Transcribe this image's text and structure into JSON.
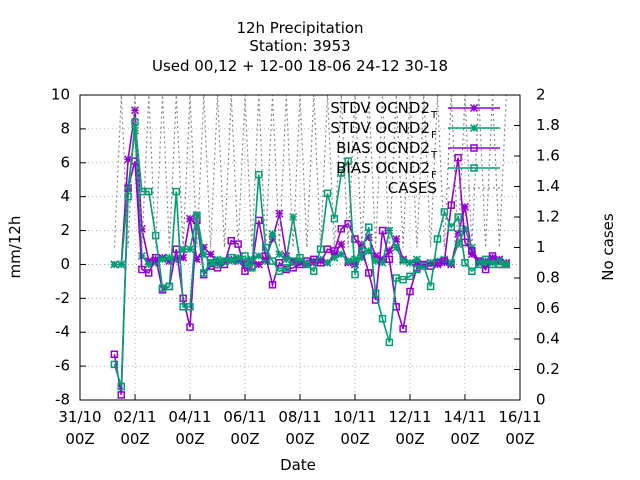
{
  "chart_data": {
    "type": "line",
    "title": [
      "12h Precipitation",
      "Station:     3953",
      "Used  00,12  + 12-00 18-06 24-12 30-18"
    ],
    "xlabel": "Date",
    "ylabel": "mm/12h",
    "y2label": "No cases",
    "ylim": [
      -8,
      10
    ],
    "yticks": [
      -8,
      -6,
      -4,
      -2,
      0,
      2,
      4,
      6,
      8,
      10
    ],
    "y2lim": [
      0,
      2
    ],
    "y2ticks": [
      "0",
      "0.2",
      "0.4",
      "0.6",
      "0.8",
      "1",
      "1.2",
      "1.4",
      "1.6",
      "1.8",
      "2"
    ],
    "xlim_days": [
      0,
      16
    ],
    "xticks": [
      {
        "day": 0,
        "label1": "31/10",
        "label2": "00Z"
      },
      {
        "day": 2,
        "label1": "02/11",
        "label2": "00Z"
      },
      {
        "day": 4,
        "label1": "04/11",
        "label2": "00Z"
      },
      {
        "day": 6,
        "label1": "06/11",
        "label2": "00Z"
      },
      {
        "day": 8,
        "label1": "08/11",
        "label2": "00Z"
      },
      {
        "day": 10,
        "label1": "10/11",
        "label2": "00Z"
      },
      {
        "day": 12,
        "label1": "12/11",
        "label2": "00Z"
      },
      {
        "day": 14,
        "label1": "14/11",
        "label2": "00Z"
      },
      {
        "day": 16,
        "label1": "16/11",
        "label2": "00Z"
      }
    ],
    "grid": true,
    "legend_position": "top-right",
    "series": [
      {
        "name": "STDV OCND2",
        "subscript": "T",
        "color": "#9400d3",
        "marker": "star",
        "axis": "y",
        "x": [
          1.25,
          1.5,
          1.75,
          2.0,
          2.25,
          2.5,
          2.75,
          3.0,
          3.25,
          3.5,
          3.75,
          4.0,
          4.25,
          4.5,
          4.75,
          5.0,
          5.25,
          5.5,
          5.75,
          6.0,
          6.25,
          6.5,
          6.75,
          7.0,
          7.25,
          7.5,
          7.75,
          8.0,
          8.25,
          8.5,
          8.75,
          9.0,
          9.25,
          9.5,
          9.75,
          10.0,
          10.25,
          10.5,
          10.75,
          11.0,
          11.25,
          11.5,
          11.75,
          12.0,
          12.25,
          12.5,
          12.75,
          13.0,
          13.25,
          13.5,
          13.75,
          14.0,
          14.25,
          14.5,
          14.75,
          15.0,
          15.25,
          15.5
        ],
        "y": [
          0.0,
          0.0,
          6.2,
          9.1,
          2.1,
          0.2,
          0.3,
          0.4,
          0.2,
          0.3,
          0.4,
          2.7,
          0.3,
          1.0,
          0.6,
          0.1,
          0.2,
          0.3,
          0.2,
          0.1,
          0.2,
          0.0,
          0.3,
          1.5,
          3.0,
          0.5,
          0.2,
          0.1,
          0.0,
          0.1,
          0.2,
          0.1,
          0.6,
          1.2,
          0.1,
          0.0,
          1.2,
          1.6,
          0.5,
          0.3,
          0.8,
          1.5,
          0.3,
          0.1,
          0.1,
          0.0,
          0.1,
          0.0,
          0.1,
          0.0,
          1.8,
          3.4,
          0.6,
          0.1,
          0.2,
          0.4,
          0.3,
          0.1
        ]
      },
      {
        "name": "STDV OCND2",
        "subscript": "F",
        "color": "#009e73",
        "marker": "star",
        "axis": "y",
        "x": [
          1.25,
          1.5,
          1.75,
          2.0,
          2.25,
          2.5,
          2.75,
          3.0,
          3.25,
          3.5,
          3.75,
          4.0,
          4.25,
          4.5,
          4.75,
          5.0,
          5.25,
          5.5,
          5.75,
          6.0,
          6.25,
          6.5,
          6.75,
          7.0,
          7.25,
          7.5,
          7.75,
          8.0,
          8.25,
          8.5,
          8.75,
          9.0,
          9.25,
          9.5,
          9.75,
          10.0,
          10.25,
          10.5,
          10.75,
          11.0,
          11.25,
          11.5,
          11.75,
          12.0,
          12.25,
          12.5,
          12.75,
          13.0,
          13.25,
          13.5,
          13.75,
          14.0,
          14.25,
          14.5,
          14.75,
          15.0,
          15.25,
          15.5
        ],
        "y": [
          0.0,
          0.0,
          4.5,
          7.9,
          0.5,
          0.0,
          0.1,
          0.3,
          0.4,
          0.3,
          0.9,
          0.9,
          2.9,
          0.6,
          0.1,
          0.3,
          0.2,
          0.2,
          0.4,
          0.0,
          0.3,
          0.5,
          0.2,
          1.8,
          0.6,
          0.3,
          2.8,
          0.2,
          0.1,
          0.2,
          0.3,
          0.1,
          0.4,
          0.6,
          0.2,
          0.3,
          0.4,
          0.8,
          0.2,
          0.1,
          2.0,
          1.0,
          0.2,
          0.1,
          0.3,
          0.0,
          0.1,
          0.2,
          0.3,
          0.1,
          1.2,
          2.1,
          1.0,
          0.2,
          0.0,
          0.1,
          0.2,
          0.0
        ]
      },
      {
        "name": "BIAS OCND2",
        "subscript": "T",
        "color": "#9400d3",
        "marker": "square",
        "axis": "y",
        "x": [
          1.25,
          1.5,
          1.75,
          2.0,
          2.25,
          2.5,
          2.75,
          3.0,
          3.25,
          3.5,
          3.75,
          4.0,
          4.25,
          4.5,
          4.75,
          5.0,
          5.25,
          5.5,
          5.75,
          6.0,
          6.25,
          6.5,
          6.75,
          7.0,
          7.25,
          7.5,
          7.75,
          8.0,
          8.25,
          8.5,
          8.75,
          9.0,
          9.25,
          9.5,
          9.75,
          10.0,
          10.25,
          10.5,
          10.75,
          11.0,
          11.25,
          11.5,
          11.75,
          12.0,
          12.25,
          12.5,
          12.75,
          13.0,
          13.25,
          13.5,
          13.75,
          14.0,
          14.25,
          14.5,
          14.75,
          15.0,
          15.25,
          15.5
        ],
        "y": [
          -5.3,
          -7.7,
          4.5,
          6.1,
          -0.3,
          -0.5,
          0.4,
          -1.5,
          -1.3,
          0.9,
          -2.0,
          -3.7,
          2.6,
          -0.6,
          -0.1,
          -0.2,
          0.0,
          1.4,
          1.2,
          -0.4,
          -0.1,
          2.6,
          0.5,
          -1.2,
          0.1,
          -0.3,
          -0.2,
          0.0,
          0.2,
          0.3,
          0.1,
          0.9,
          0.8,
          2.1,
          2.4,
          1.5,
          0.9,
          -0.5,
          -2.1,
          2.0,
          0.3,
          -2.5,
          -3.8,
          -1.6,
          -0.2,
          0.0,
          -0.1,
          0.1,
          0.2,
          3.5,
          6.3,
          1.3,
          0.8,
          0.2,
          -0.3,
          0.5,
          0.0,
          0.0
        ]
      },
      {
        "name": "BIAS OCND2",
        "subscript": "F",
        "color": "#009e73",
        "marker": "square",
        "axis": "y",
        "x": [
          1.25,
          1.5,
          1.75,
          2.0,
          2.25,
          2.5,
          2.75,
          3.0,
          3.25,
          3.5,
          3.75,
          4.0,
          4.25,
          4.5,
          4.75,
          5.0,
          5.25,
          5.5,
          5.75,
          6.0,
          6.25,
          6.5,
          6.75,
          7.0,
          7.25,
          7.5,
          7.75,
          8.0,
          8.25,
          8.5,
          8.75,
          9.0,
          9.25,
          9.5,
          9.75,
          10.0,
          10.25,
          10.5,
          10.75,
          11.0,
          11.25,
          11.5,
          11.75,
          12.0,
          12.25,
          12.5,
          12.75,
          13.0,
          13.25,
          13.5,
          13.75,
          14.0,
          14.25,
          14.5,
          14.75,
          15.0,
          15.25,
          15.5
        ],
        "y": [
          -5.9,
          -7.2,
          4.0,
          8.4,
          4.3,
          4.3,
          1.7,
          -1.4,
          -1.3,
          4.3,
          -2.5,
          -2.5,
          2.9,
          -0.5,
          0.1,
          0.0,
          0.2,
          0.4,
          0.3,
          0.5,
          -0.2,
          5.3,
          1.0,
          0.2,
          -0.4,
          -0.2,
          0.2,
          0.4,
          0.0,
          -0.4,
          0.9,
          4.2,
          2.7,
          5.4,
          6.1,
          -0.6,
          0.8,
          2.2,
          -1.7,
          -3.2,
          -4.6,
          -0.8,
          -0.9,
          -0.7,
          -0.3,
          -0.1,
          -1.3,
          1.5,
          3.1,
          2.2,
          2.8,
          0.1,
          -0.4,
          0.0,
          0.3,
          0.0,
          0.0,
          0.0
        ]
      },
      {
        "name": "CASES",
        "color": "#888888",
        "marker": "none",
        "axis": "y2",
        "dashed": true,
        "x": [
          1.25,
          1.5,
          1.75,
          2.0,
          2.25,
          2.5,
          2.75,
          3.0,
          3.25,
          3.5,
          3.75,
          4.0,
          4.25,
          4.5,
          4.75,
          5.0,
          5.25,
          5.5,
          5.75,
          6.0,
          6.25,
          6.5,
          6.75,
          7.0,
          7.25,
          7.5,
          7.75,
          8.0,
          8.25,
          8.5,
          8.75,
          9.0,
          9.25,
          9.5,
          9.75,
          10.0,
          10.25,
          10.5,
          10.75,
          11.0,
          11.25,
          11.5,
          11.75,
          12.0,
          12.25,
          12.5,
          12.75,
          13.0,
          13.25,
          13.5,
          13.75,
          14.0,
          14.25,
          14.5,
          14.75,
          15.0,
          15.25,
          15.5
        ],
        "y": [
          1,
          2,
          1,
          2,
          1,
          2,
          1,
          2,
          1,
          2,
          1,
          2,
          1,
          2,
          1,
          2,
          1,
          2,
          1,
          2,
          1,
          2,
          1,
          2,
          1,
          2,
          1,
          2,
          1,
          2,
          1,
          2,
          1,
          2,
          1,
          2,
          1,
          2,
          1,
          2,
          1,
          2,
          1,
          2,
          1,
          2,
          1,
          2,
          1,
          2,
          1,
          2,
          1,
          2,
          1,
          2,
          1,
          2
        ]
      }
    ]
  }
}
